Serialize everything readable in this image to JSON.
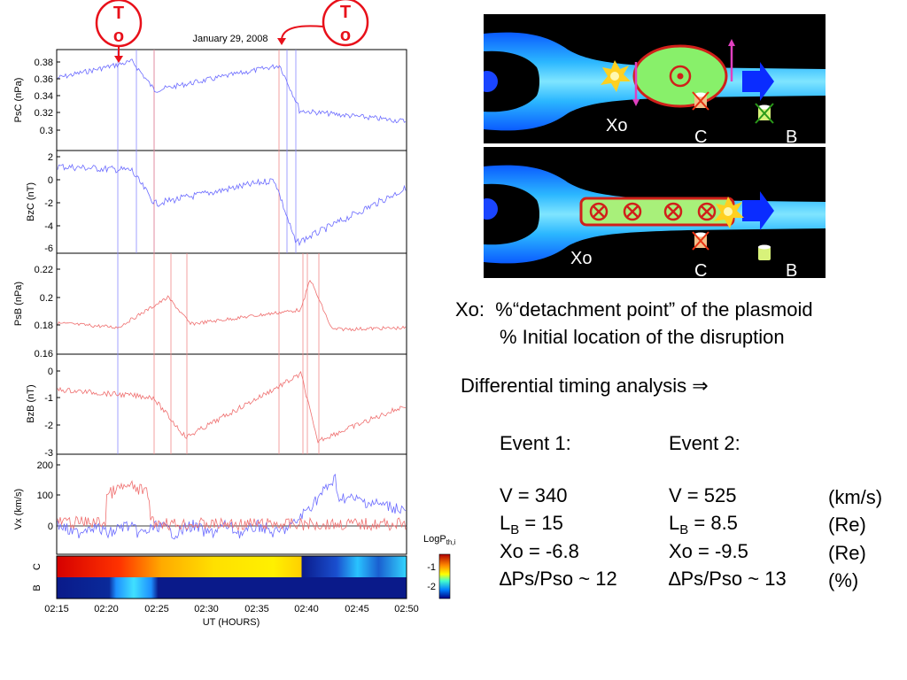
{
  "plot": {
    "date": "January 29, 2008",
    "to_label_top": "T",
    "to_label_bottom": "o",
    "x_ticks": [
      "02:15",
      "02:20",
      "02:25",
      "02:30",
      "02:35",
      "02:40",
      "02:45",
      "02:50"
    ],
    "x_axis_label": "UT (HOURS)",
    "panels": [
      {
        "ylabel": "PsC (nPa)",
        "yticks": [
          "0.38",
          "0.36",
          "0.34",
          "0.32",
          "0.3"
        ]
      },
      {
        "ylabel": "BzC (nT)",
        "yticks": [
          "2",
          "0",
          "-2",
          "-4",
          "-6"
        ]
      },
      {
        "ylabel": "PsB (nPa)",
        "yticks": [
          "0.22",
          "0.2",
          "0.18",
          "0.16"
        ]
      },
      {
        "ylabel": "BzB (nT)",
        "yticks": [
          "0",
          "-1",
          "-2",
          "-3"
        ]
      },
      {
        "ylabel": "Vx (km/s)",
        "yticks": [
          "200",
          "100",
          "0"
        ]
      }
    ],
    "spectrogram": {
      "row_labels": [
        "C",
        "B"
      ],
      "colorbar_title": "LogP",
      "colorbar_sub": "th,i",
      "colorbar_ticks": [
        "-1",
        "-2"
      ]
    }
  },
  "diagrams": {
    "top": {
      "xo": "Xo",
      "c": "C",
      "b": "B"
    },
    "bottom": {
      "xo": "Xo",
      "c": "C",
      "b": "B"
    }
  },
  "notes": {
    "xo_prefix": "Xo:",
    "line1": "%“detachment point”  of the plasmoid",
    "line2": "% Initial location of the disruption",
    "timing_title": "Differential timing analysis ⇒"
  },
  "events": {
    "event1_title": "Event 1:",
    "event2_title": "Event 2:",
    "rows": [
      {
        "e1": "V = 340",
        "e2": "V = 525",
        "unit": "(km/s)"
      },
      {
        "e1_main": "L",
        "e1_sub": "B",
        "e1_rest": " = 15",
        "e2_main": "L",
        "e2_sub": "B",
        "e2_rest": " = 8.5",
        "unit": "(Re)"
      },
      {
        "e1": "Xo = -6.8",
        "e2": "Xo = -9.5",
        "unit": "(Re)"
      },
      {
        "e1": "∆Ps/Pso ~ 12",
        "e2": "∆Ps/Pso ~ 13",
        "unit": "(%)"
      }
    ]
  },
  "colors": {
    "red": "#e8101a",
    "blue_series": "#6b6bff",
    "red_series": "#ef6f6f"
  }
}
